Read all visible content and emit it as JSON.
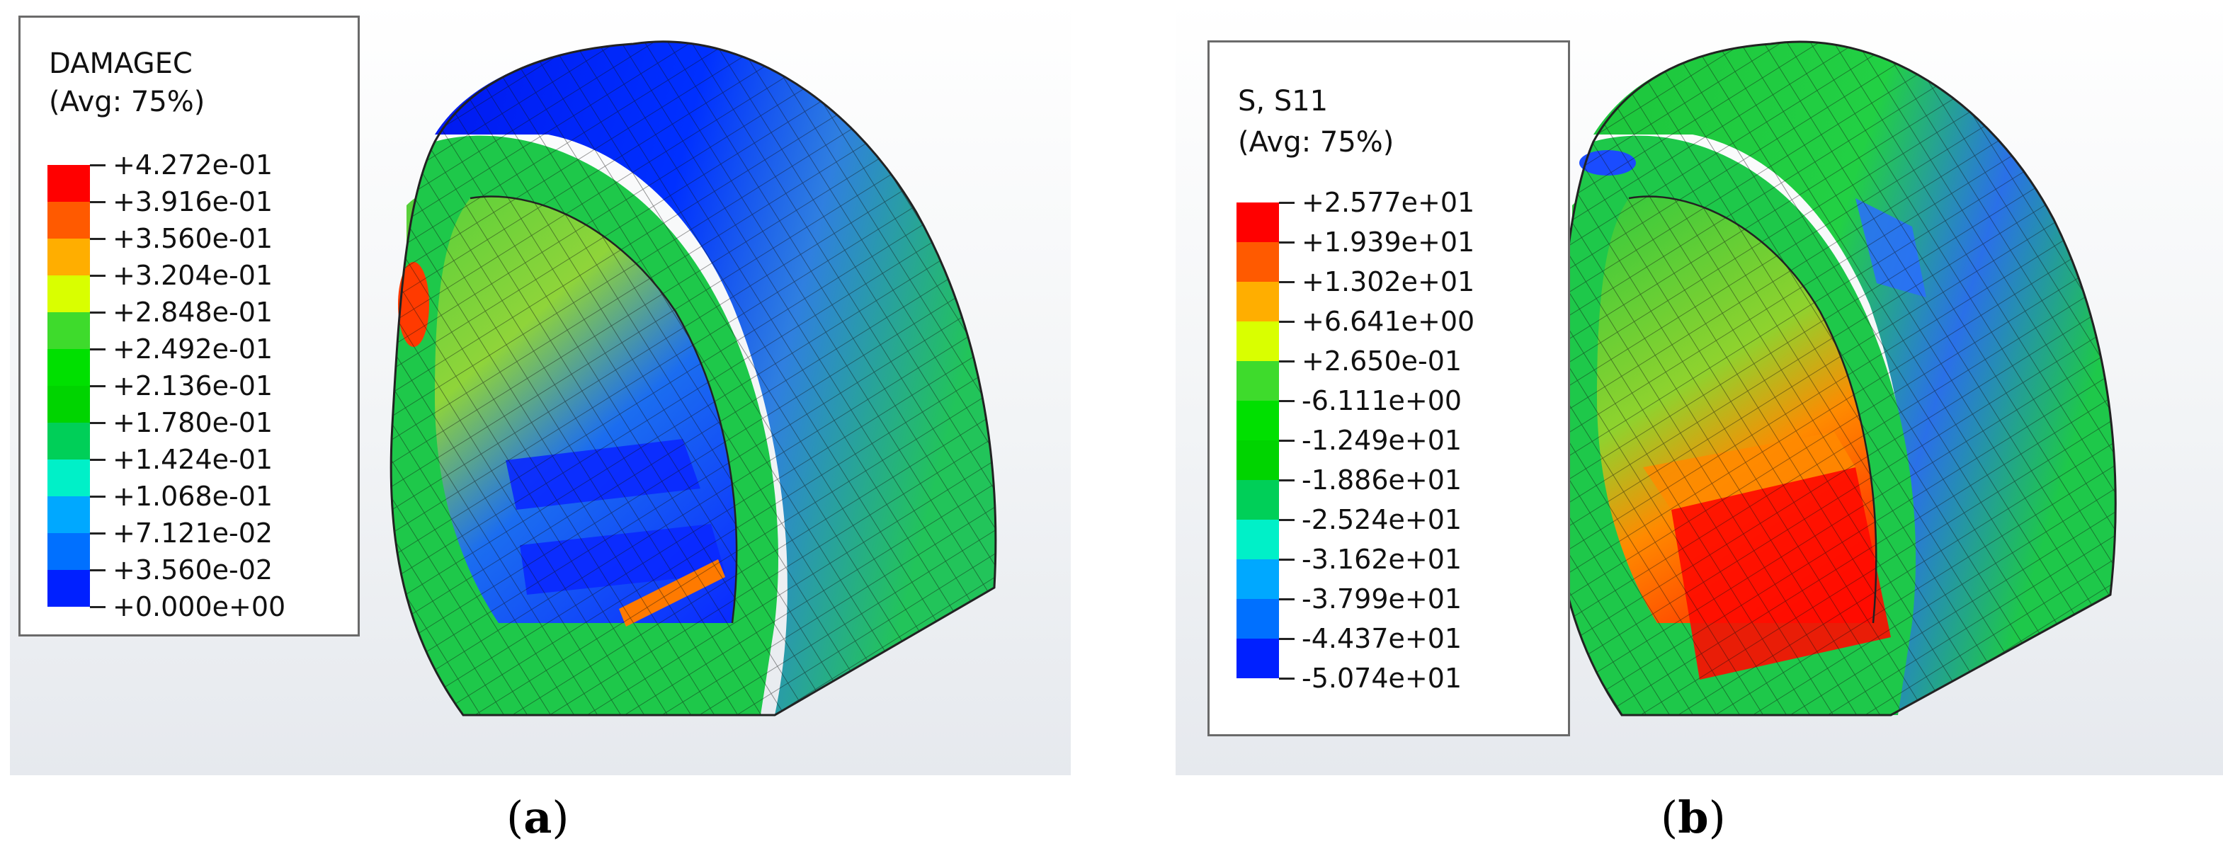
{
  "panels": [
    {
      "caption_open": "(",
      "caption_letter": "a",
      "caption_close": ")",
      "legend": {
        "variable": "DAMAGEC",
        "averaging": "(Avg: 75%)",
        "levels": [
          "+4.272e-01",
          "+3.916e-01",
          "+3.560e-01",
          "+3.204e-01",
          "+2.848e-01",
          "+2.492e-01",
          "+2.136e-01",
          "+1.780e-01",
          "+1.424e-01",
          "+1.068e-01",
          "+7.121e-02",
          "+3.560e-02",
          "+0.000e+00"
        ],
        "colors": [
          "#ff0000",
          "#ff5a00",
          "#ffae00",
          "#d9ff00",
          "#3edb2c",
          "#00e000",
          "#00d400",
          "#00cf58",
          "#00f0c8",
          "#00a8ff",
          "#0070ff",
          "#0020ff"
        ]
      }
    },
    {
      "caption_open": "(",
      "caption_letter": "b",
      "caption_close": ")",
      "legend": {
        "variable": "S, S11",
        "averaging": "(Avg: 75%)",
        "levels": [
          "+2.577e+01",
          "+1.939e+01",
          "+1.302e+01",
          "+6.641e+00",
          "+2.650e-01",
          "-6.111e+00",
          "-1.249e+01",
          "-1.886e+01",
          "-2.524e+01",
          "-3.162e+01",
          "-3.799e+01",
          "-4.437e+01",
          "-5.074e+01"
        ],
        "colors": [
          "#ff0000",
          "#ff5a00",
          "#ffae00",
          "#d9ff00",
          "#3edb2c",
          "#00e000",
          "#00d400",
          "#00cf58",
          "#00f0c8",
          "#00a8ff",
          "#0070ff",
          "#0020ff"
        ]
      }
    }
  ]
}
